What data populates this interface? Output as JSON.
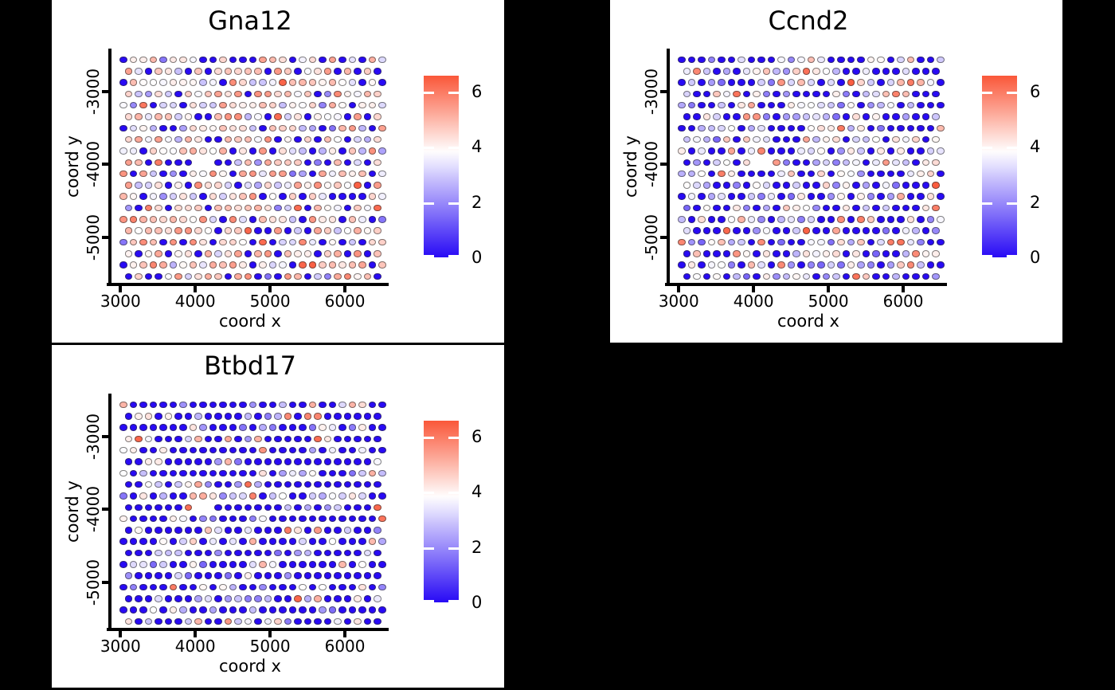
{
  "figure": {
    "background_color": "#000000",
    "panel_background_color": "#ffffff",
    "grid_layout": "2 columns x 2 rows, bottom-right cell empty"
  },
  "chart_data": [
    {
      "type": "scatter",
      "title": "Gna12",
      "xlabel": "coord x",
      "ylabel": "coord y",
      "x_ticks": [
        3000,
        4000,
        5000,
        6000
      ],
      "y_ticks": [
        -3000,
        -4000,
        -5000
      ],
      "x_range": [
        2880,
        6585
      ],
      "y_range": [
        -5625,
        -2430
      ],
      "grid": false,
      "legend_position": "right",
      "legend": {
        "ticks": [
          6,
          4,
          2,
          0
        ],
        "vmin": 0,
        "vmax": 6.57,
        "tick_color": "#ffffff"
      },
      "colormap": {
        "type": "diverging",
        "low_color": [
          40,
          10,
          245
        ],
        "mid_color": [
          255,
          255,
          255
        ],
        "high_color": [
          250,
          87,
          57
        ],
        "mid_value": 3.8,
        "vmin": 0,
        "vmax": 6.57
      },
      "spot_grid": {
        "pattern": "hexagonal",
        "rows": 20,
        "cols": 27,
        "x0": 3040,
        "dx": 133.1,
        "y0": -2561,
        "dy": -156.6,
        "row_offset_fraction": 0.5,
        "missing": [
          [
            9,
            7
          ],
          [
            9,
            8
          ]
        ]
      },
      "expression_distribution": {
        "seed": 101,
        "buckets": [
          [
            0.22,
            0,
            0
          ],
          [
            0.05,
            1.6,
            2.6
          ],
          [
            0.11,
            2.6,
            3.6
          ],
          [
            0.2,
            3.6,
            4.3
          ],
          [
            0.22,
            4.3,
            5.0
          ],
          [
            0.17,
            5.0,
            5.8
          ],
          [
            0.03,
            5.8,
            6.5
          ]
        ]
      }
    },
    {
      "type": "scatter",
      "title": "Ccnd2",
      "xlabel": "coord x",
      "ylabel": "coord y",
      "x_ticks": [
        3000,
        4000,
        5000,
        6000
      ],
      "y_ticks": [
        -3000,
        -4000,
        -5000
      ],
      "x_range": [
        2880,
        6585
      ],
      "y_range": [
        -5625,
        -2430
      ],
      "grid": false,
      "legend_position": "right",
      "legend": {
        "ticks": [
          6,
          4,
          2,
          0
        ],
        "vmin": 0,
        "vmax": 6.57,
        "tick_color": "#ffffff"
      },
      "colormap": {
        "type": "diverging",
        "low_color": [
          40,
          10,
          245
        ],
        "mid_color": [
          255,
          255,
          255
        ],
        "high_color": [
          250,
          87,
          57
        ],
        "mid_value": 3.8,
        "vmin": 0,
        "vmax": 6.57
      },
      "spot_grid": {
        "pattern": "hexagonal",
        "rows": 20,
        "cols": 27,
        "x0": 3040,
        "dx": 133.1,
        "y0": -2561,
        "dy": -156.6,
        "row_offset_fraction": 0.5,
        "missing": [
          [
            9,
            7
          ],
          [
            9,
            8
          ]
        ]
      },
      "expression_distribution": {
        "seed": 202,
        "buckets": [
          [
            0.43,
            0,
            0
          ],
          [
            0.13,
            1.4,
            2.6
          ],
          [
            0.15,
            2.6,
            3.6
          ],
          [
            0.13,
            3.6,
            4.2
          ],
          [
            0.1,
            4.2,
            5.0
          ],
          [
            0.05,
            5.0,
            6.0
          ],
          [
            0.01,
            6.0,
            6.5
          ]
        ]
      }
    },
    {
      "type": "scatter",
      "title": "Btbd17",
      "xlabel": "coord x",
      "ylabel": "coord y",
      "x_ticks": [
        3000,
        4000,
        5000,
        6000
      ],
      "y_ticks": [
        -3000,
        -4000,
        -5000
      ],
      "x_range": [
        2880,
        6585
      ],
      "y_range": [
        -5625,
        -2430
      ],
      "grid": false,
      "legend_position": "right",
      "legend": {
        "ticks": [
          6,
          4,
          2,
          0
        ],
        "vmin": 0,
        "vmax": 6.57,
        "tick_color": "#ffffff"
      },
      "colormap": {
        "type": "diverging",
        "low_color": [
          40,
          10,
          245
        ],
        "mid_color": [
          255,
          255,
          255
        ],
        "high_color": [
          250,
          87,
          57
        ],
        "mid_value": 3.8,
        "vmin": 0,
        "vmax": 6.57
      },
      "spot_grid": {
        "pattern": "hexagonal",
        "rows": 20,
        "cols": 27,
        "x0": 3040,
        "dx": 133.1,
        "y0": -2561,
        "dy": -156.6,
        "row_offset_fraction": 0.5,
        "missing": [
          [
            9,
            7
          ],
          [
            9,
            8
          ]
        ]
      },
      "expression_distribution": {
        "seed": 303,
        "buckets": [
          [
            0.66,
            0,
            0
          ],
          [
            0.12,
            1.4,
            2.8
          ],
          [
            0.09,
            2.8,
            3.7
          ],
          [
            0.06,
            3.7,
            4.3
          ],
          [
            0.04,
            4.3,
            5.2
          ],
          [
            0.03,
            5.2,
            6.4
          ]
        ]
      }
    }
  ]
}
